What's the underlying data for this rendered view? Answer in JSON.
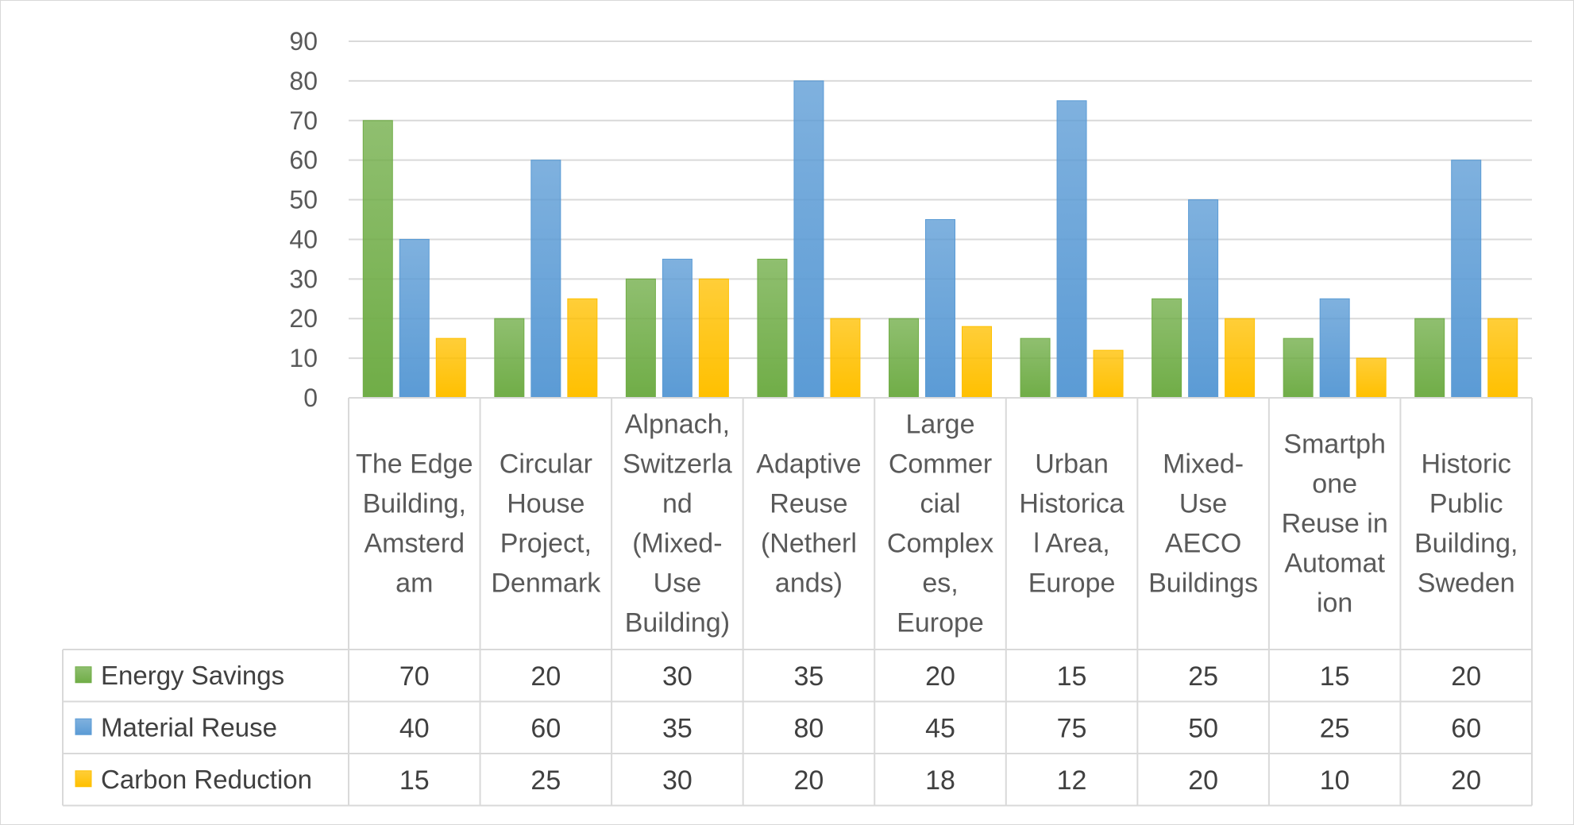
{
  "chart_data": {
    "type": "bar",
    "title": "",
    "xlabel": "",
    "ylabel": "",
    "ylim": [
      0,
      90
    ],
    "yticks": [
      0,
      10,
      20,
      30,
      40,
      50,
      60,
      70,
      80,
      90
    ],
    "grid": true,
    "legend": "data-table",
    "categories": [
      [
        "The Edge",
        "Building,",
        "Amsterd",
        "am"
      ],
      [
        "Circular",
        "House",
        "Project,",
        "Denmark"
      ],
      [
        "Alpnach,",
        "Switzerla",
        "nd",
        "(Mixed-",
        "Use",
        "Building)"
      ],
      [
        "Adaptive",
        "Reuse",
        "(Netherl",
        "ands)"
      ],
      [
        "Large",
        "Commer",
        "cial",
        "Complex",
        "es,",
        "Europe"
      ],
      [
        "Urban",
        "Historica",
        "l Area,",
        "Europe"
      ],
      [
        "Mixed-",
        "Use",
        "AECO",
        "Buildings"
      ],
      [
        "Smartph",
        "one",
        "Reuse in",
        "Automat",
        "ion"
      ],
      [
        "Historic",
        "Public",
        "Building,",
        "Sweden"
      ]
    ],
    "series": [
      {
        "name": "Energy Savings",
        "color": "#70AD47",
        "values": [
          70,
          20,
          30,
          35,
          20,
          15,
          25,
          15,
          20
        ]
      },
      {
        "name": "Material Reuse",
        "color": "#5B9BD5",
        "values": [
          40,
          60,
          35,
          80,
          45,
          75,
          50,
          25,
          60
        ]
      },
      {
        "name": "Carbon Reduction",
        "color": "#FFC000",
        "values": [
          15,
          25,
          30,
          20,
          18,
          12,
          20,
          10,
          20
        ]
      }
    ]
  }
}
